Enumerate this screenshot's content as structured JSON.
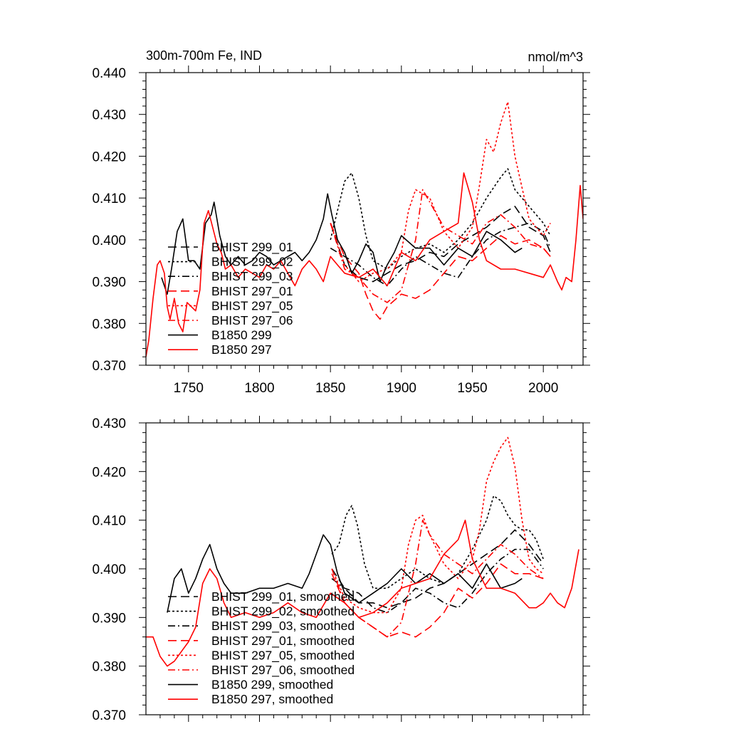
{
  "chart_data": [
    {
      "type": "line",
      "title": "300m-700m Fe, IND",
      "units": "nmol/m^3",
      "xlim": [
        1720,
        2028
      ],
      "ylim": [
        0.37,
        0.44
      ],
      "x_ticks": [
        1750,
        1800,
        1850,
        1900,
        1950,
        2000
      ],
      "x_tick_labels": [
        "1750",
        "1800",
        "1850",
        "1900",
        "1950",
        "2000"
      ],
      "y_ticks": [
        0.37,
        0.38,
        0.39,
        0.4,
        0.41,
        0.42,
        0.43,
        0.44
      ],
      "y_tick_labels": [
        "0.370",
        "0.380",
        "0.390",
        "0.400",
        "0.410",
        "0.420",
        "0.430",
        "0.440"
      ],
      "legend_position": "lower-left",
      "series": [
        {
          "name": "BHIST 299_01",
          "color": "#000000",
          "dash": "dashed",
          "x": [
            1850,
            1860,
            1870,
            1880,
            1890,
            1900,
            1910,
            1920,
            1930,
            1940,
            1950,
            1960,
            1970,
            1980,
            1990,
            2000,
            2005
          ],
          "values": [
            0.404,
            0.394,
            0.391,
            0.39,
            0.392,
            0.394,
            0.395,
            0.397,
            0.396,
            0.399,
            0.401,
            0.403,
            0.406,
            0.408,
            0.403,
            0.401,
            0.397
          ]
        },
        {
          "name": "BHIST 299_02",
          "color": "#000000",
          "dash": "dotted",
          "x": [
            1850,
            1855,
            1860,
            1865,
            1870,
            1875,
            1880,
            1890,
            1900,
            1910,
            1920,
            1930,
            1940,
            1950,
            1960,
            1970,
            1975,
            1980,
            1990,
            2000,
            2005
          ],
          "values": [
            0.4,
            0.407,
            0.414,
            0.416,
            0.41,
            0.401,
            0.395,
            0.393,
            0.396,
            0.398,
            0.399,
            0.397,
            0.4,
            0.404,
            0.41,
            0.415,
            0.417,
            0.412,
            0.408,
            0.404,
            0.401
          ]
        },
        {
          "name": "BHIST 299_03",
          "color": "#000000",
          "dash": "dashdot",
          "x": [
            1850,
            1860,
            1870,
            1880,
            1890,
            1900,
            1910,
            1920,
            1930,
            1940,
            1950,
            1960,
            1970,
            1980,
            1990,
            2000,
            2005
          ],
          "values": [
            0.398,
            0.396,
            0.394,
            0.391,
            0.389,
            0.393,
            0.396,
            0.394,
            0.392,
            0.391,
            0.396,
            0.4,
            0.402,
            0.403,
            0.404,
            0.402,
            0.398
          ]
        },
        {
          "name": "BHIST 297_01",
          "color": "#ff0000",
          "dash": "dashed",
          "x": [
            1850,
            1860,
            1870,
            1875,
            1880,
            1885,
            1890,
            1900,
            1910,
            1920,
            1930,
            1940,
            1950,
            1960,
            1970,
            1980,
            1990,
            2000,
            2005
          ],
          "values": [
            0.404,
            0.396,
            0.392,
            0.387,
            0.383,
            0.381,
            0.384,
            0.387,
            0.386,
            0.388,
            0.392,
            0.396,
            0.395,
            0.398,
            0.401,
            0.399,
            0.4,
            0.398,
            0.396
          ]
        },
        {
          "name": "BHIST 297_05",
          "color": "#ff0000",
          "dash": "dotted",
          "x": [
            1850,
            1860,
            1870,
            1880,
            1890,
            1900,
            1905,
            1910,
            1920,
            1930,
            1940,
            1950,
            1955,
            1960,
            1965,
            1970,
            1975,
            1980,
            1990,
            2000,
            2005
          ],
          "values": [
            0.404,
            0.394,
            0.39,
            0.392,
            0.393,
            0.397,
            0.407,
            0.412,
            0.41,
            0.402,
            0.398,
            0.403,
            0.413,
            0.424,
            0.421,
            0.428,
            0.433,
            0.42,
            0.405,
            0.401,
            0.404
          ]
        },
        {
          "name": "BHIST 297_06",
          "color": "#ff0000",
          "dash": "dashdot",
          "x": [
            1850,
            1860,
            1870,
            1880,
            1890,
            1900,
            1910,
            1915,
            1920,
            1930,
            1940,
            1950,
            1960,
            1970,
            1980,
            1990,
            2000,
            2005
          ],
          "values": [
            0.404,
            0.393,
            0.391,
            0.387,
            0.385,
            0.388,
            0.4,
            0.412,
            0.409,
            0.403,
            0.401,
            0.399,
            0.404,
            0.406,
            0.403,
            0.399,
            0.398,
            0.396
          ]
        },
        {
          "name": "B1850 299",
          "color": "#000000",
          "dash": "solid",
          "x": [
            1731,
            1735,
            1738,
            1742,
            1746,
            1750,
            1754,
            1758,
            1762,
            1766,
            1768,
            1772,
            1776,
            1780,
            1785,
            1790,
            1795,
            1800,
            1805,
            1810,
            1815,
            1820,
            1825,
            1830,
            1835,
            1840,
            1845,
            1848,
            1851,
            1855,
            1860,
            1865,
            1870,
            1875,
            1880,
            1885,
            1890,
            1895,
            1900,
            1910,
            1920,
            1930,
            1940,
            1950,
            1960,
            1970,
            1980,
            1985
          ],
          "values": [
            0.391,
            0.387,
            0.393,
            0.402,
            0.405,
            0.395,
            0.395,
            0.393,
            0.404,
            0.406,
            0.409,
            0.401,
            0.396,
            0.394,
            0.396,
            0.394,
            0.395,
            0.397,
            0.396,
            0.394,
            0.395,
            0.396,
            0.397,
            0.395,
            0.397,
            0.4,
            0.405,
            0.411,
            0.406,
            0.4,
            0.397,
            0.392,
            0.395,
            0.399,
            0.397,
            0.39,
            0.394,
            0.397,
            0.401,
            0.398,
            0.398,
            0.394,
            0.398,
            0.396,
            0.402,
            0.4,
            0.397,
            0.398
          ]
        },
        {
          "name": "B1850 297",
          "color": "#ff0000",
          "dash": "solid",
          "x": [
            1720,
            1722,
            1725,
            1728,
            1730,
            1733,
            1735,
            1737,
            1740,
            1743,
            1746,
            1749,
            1752,
            1755,
            1758,
            1761,
            1764,
            1767,
            1770,
            1773,
            1776,
            1780,
            1785,
            1790,
            1795,
            1800,
            1805,
            1810,
            1815,
            1820,
            1825,
            1830,
            1835,
            1840,
            1845,
            1850,
            1855,
            1860,
            1870,
            1880,
            1890,
            1900,
            1910,
            1920,
            1930,
            1940,
            1944,
            1950,
            1955,
            1960,
            1970,
            1980,
            1990,
            2000,
            2005,
            2010,
            2013,
            2016,
            2020,
            2023,
            2026,
            2028
          ],
          "values": [
            0.372,
            0.376,
            0.386,
            0.394,
            0.395,
            0.392,
            0.384,
            0.381,
            0.386,
            0.38,
            0.378,
            0.385,
            0.384,
            0.383,
            0.388,
            0.404,
            0.407,
            0.403,
            0.399,
            0.397,
            0.393,
            0.394,
            0.391,
            0.393,
            0.392,
            0.391,
            0.394,
            0.393,
            0.395,
            0.392,
            0.389,
            0.393,
            0.395,
            0.393,
            0.39,
            0.396,
            0.394,
            0.392,
            0.391,
            0.393,
            0.389,
            0.397,
            0.395,
            0.4,
            0.402,
            0.404,
            0.416,
            0.409,
            0.4,
            0.395,
            0.393,
            0.393,
            0.392,
            0.391,
            0.394,
            0.39,
            0.388,
            0.391,
            0.39,
            0.4,
            0.413,
            0.405
          ]
        }
      ]
    },
    {
      "type": "line",
      "title": "",
      "xlim": [
        1720,
        2028
      ],
      "ylim": [
        0.37,
        0.43
      ],
      "x_ticks": [
        1750,
        1800,
        1850,
        1900,
        1950,
        2000
      ],
      "y_ticks": [
        0.37,
        0.38,
        0.39,
        0.4,
        0.41,
        0.42,
        0.43
      ],
      "y_tick_labels": [
        "0.370",
        "0.380",
        "0.390",
        "0.400",
        "0.410",
        "0.420",
        "0.430"
      ],
      "legend_position": "lower-left",
      "series": [
        {
          "name": "BHIST 299_01, smoothed",
          "color": "#000000",
          "dash": "dashed",
          "x": [
            1851,
            1860,
            1870,
            1880,
            1890,
            1900,
            1910,
            1920,
            1930,
            1940,
            1950,
            1960,
            1970,
            1980,
            1990,
            2000
          ],
          "values": [
            0.4,
            0.396,
            0.393,
            0.393,
            0.392,
            0.393,
            0.394,
            0.396,
            0.397,
            0.399,
            0.401,
            0.403,
            0.405,
            0.408,
            0.405,
            0.401
          ]
        },
        {
          "name": "BHIST 299_02, smoothed",
          "color": "#000000",
          "dash": "dotted",
          "x": [
            1851,
            1856,
            1861,
            1865,
            1869,
            1874,
            1880,
            1890,
            1900,
            1910,
            1920,
            1930,
            1940,
            1950,
            1955,
            1960,
            1965,
            1970,
            1975,
            1980,
            1985,
            1990,
            1995,
            2000
          ],
          "values": [
            0.403,
            0.405,
            0.411,
            0.413,
            0.409,
            0.401,
            0.396,
            0.396,
            0.398,
            0.4,
            0.398,
            0.397,
            0.399,
            0.404,
            0.407,
            0.41,
            0.415,
            0.414,
            0.411,
            0.409,
            0.408,
            0.408,
            0.406,
            0.402
          ]
        },
        {
          "name": "BHIST 299_03, smoothed",
          "color": "#000000",
          "dash": "dashdot",
          "x": [
            1851,
            1860,
            1870,
            1880,
            1890,
            1900,
            1910,
            1920,
            1930,
            1940,
            1950,
            1960,
            1970,
            1980,
            1990,
            2000
          ],
          "values": [
            0.398,
            0.396,
            0.395,
            0.392,
            0.391,
            0.393,
            0.396,
            0.395,
            0.393,
            0.392,
            0.395,
            0.399,
            0.402,
            0.404,
            0.404,
            0.4
          ]
        },
        {
          "name": "BHIST 297_01, smoothed",
          "color": "#ff0000",
          "dash": "dashed",
          "x": [
            1851,
            1860,
            1870,
            1880,
            1890,
            1900,
            1910,
            1920,
            1930,
            1940,
            1950,
            1960,
            1970,
            1980,
            1990,
            2000
          ],
          "values": [
            0.399,
            0.393,
            0.39,
            0.388,
            0.386,
            0.387,
            0.386,
            0.388,
            0.391,
            0.396,
            0.394,
            0.397,
            0.401,
            0.399,
            0.399,
            0.398
          ]
        },
        {
          "name": "BHIST 297_05, smoothed",
          "color": "#ff0000",
          "dash": "dotted",
          "x": [
            1851,
            1860,
            1870,
            1880,
            1890,
            1900,
            1905,
            1910,
            1915,
            1920,
            1930,
            1940,
            1950,
            1955,
            1960,
            1965,
            1970,
            1975,
            1980,
            1985,
            1990,
            1995,
            2000
          ],
          "values": [
            0.4,
            0.394,
            0.392,
            0.391,
            0.391,
            0.396,
            0.405,
            0.41,
            0.411,
            0.407,
            0.401,
            0.398,
            0.402,
            0.408,
            0.418,
            0.422,
            0.425,
            0.427,
            0.421,
            0.41,
            0.402,
            0.4,
            0.399
          ]
        },
        {
          "name": "BHIST 297_06, smoothed",
          "color": "#ff0000",
          "dash": "dashdot",
          "x": [
            1851,
            1860,
            1870,
            1880,
            1890,
            1900,
            1910,
            1915,
            1920,
            1930,
            1940,
            1950,
            1960,
            1970,
            1980,
            1990,
            2000
          ],
          "values": [
            0.4,
            0.393,
            0.39,
            0.388,
            0.386,
            0.389,
            0.401,
            0.41,
            0.407,
            0.403,
            0.401,
            0.399,
            0.402,
            0.405,
            0.403,
            0.4,
            0.398
          ]
        },
        {
          "name": "B1850 299, smoothed",
          "color": "#000000",
          "dash": "solid",
          "x": [
            1735,
            1740,
            1745,
            1750,
            1755,
            1760,
            1765,
            1770,
            1775,
            1780,
            1790,
            1800,
            1810,
            1820,
            1830,
            1835,
            1840,
            1845,
            1850,
            1855,
            1860,
            1870,
            1880,
            1890,
            1900,
            1910,
            1920,
            1930,
            1940,
            1950,
            1960,
            1970,
            1980,
            1985
          ],
          "values": [
            0.391,
            0.398,
            0.4,
            0.395,
            0.398,
            0.402,
            0.405,
            0.4,
            0.397,
            0.395,
            0.395,
            0.396,
            0.396,
            0.397,
            0.396,
            0.399,
            0.403,
            0.407,
            0.405,
            0.399,
            0.395,
            0.393,
            0.395,
            0.397,
            0.4,
            0.397,
            0.399,
            0.397,
            0.399,
            0.396,
            0.401,
            0.396,
            0.397,
            0.398
          ]
        },
        {
          "name": "B1850 297, smoothed",
          "color": "#ff0000",
          "dash": "solid",
          "x": [
            1720,
            1725,
            1730,
            1735,
            1740,
            1745,
            1750,
            1755,
            1760,
            1765,
            1770,
            1775,
            1780,
            1790,
            1800,
            1810,
            1820,
            1830,
            1840,
            1850,
            1860,
            1870,
            1880,
            1890,
            1900,
            1910,
            1920,
            1930,
            1940,
            1945,
            1950,
            1960,
            1970,
            1980,
            1990,
            1995,
            2000,
            2005,
            2010,
            2015,
            2020,
            2025
          ],
          "values": [
            0.386,
            0.386,
            0.382,
            0.38,
            0.381,
            0.383,
            0.385,
            0.388,
            0.397,
            0.4,
            0.398,
            0.393,
            0.39,
            0.391,
            0.39,
            0.391,
            0.393,
            0.391,
            0.39,
            0.395,
            0.393,
            0.39,
            0.391,
            0.393,
            0.396,
            0.397,
            0.398,
            0.403,
            0.406,
            0.41,
            0.402,
            0.396,
            0.396,
            0.395,
            0.392,
            0.392,
            0.393,
            0.395,
            0.393,
            0.392,
            0.396,
            0.404
          ]
        }
      ]
    }
  ]
}
